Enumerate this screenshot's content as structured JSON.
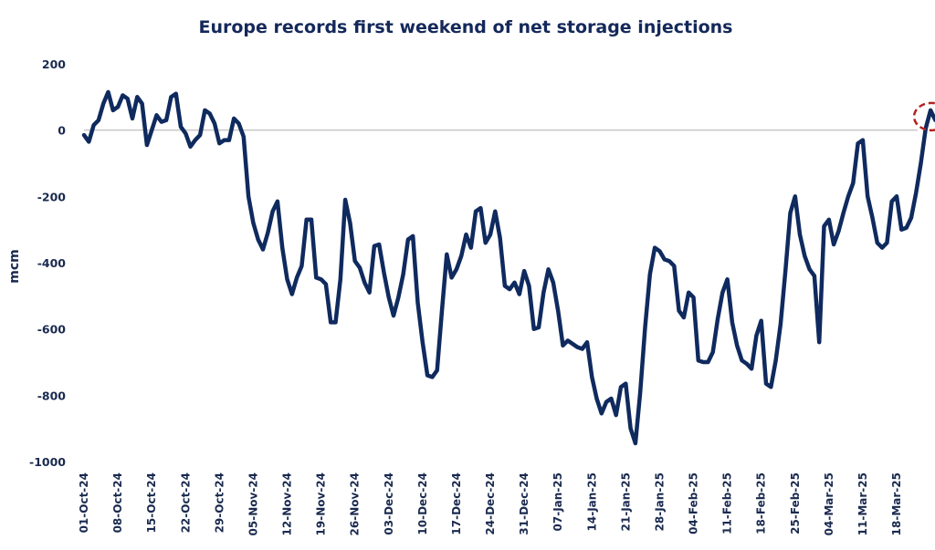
{
  "chart_data": {
    "type": "line",
    "title": "Europe records first weekend of net storage injections",
    "xlabel": "",
    "ylabel": "mcm",
    "ylim": [
      -1000,
      200
    ],
    "yticks": [
      200,
      0,
      -200,
      -400,
      -600,
      -800,
      -1000
    ],
    "ytick_labels": [
      "200",
      "0",
      "-200",
      "-400",
      "-600",
      "-800",
      "-1000"
    ],
    "xtick_labels": [
      "01-Oct-24",
      "08-Oct-24",
      "15-Oct-24",
      "22-Oct-24",
      "29-Oct-24",
      "05-Nov-24",
      "12-Nov-24",
      "19-Nov-24",
      "26-Nov-24",
      "03-Dec-24",
      "10-Dec-24",
      "17-Dec-24",
      "24-Dec-24",
      "31-Dec-24",
      "07-Jan-25",
      "14-Jan-25",
      "21-Jan-25",
      "28-Jan-25",
      "04-Feb-25",
      "11-Feb-25",
      "18-Feb-25",
      "25-Feb-25",
      "04-Mar-25",
      "11-Mar-25",
      "18-Mar-25"
    ],
    "x_start_date": "01-Oct-24",
    "x_step": "1 day",
    "grid": false,
    "zero_line": true,
    "series": [
      {
        "name": "Net storage injections",
        "color": "#0f2a5e",
        "values": [
          -15,
          -35,
          15,
          30,
          80,
          115,
          60,
          70,
          105,
          95,
          35,
          100,
          80,
          -45,
          0,
          45,
          25,
          30,
          100,
          110,
          10,
          -10,
          -50,
          -30,
          -15,
          60,
          50,
          20,
          -40,
          -30,
          -30,
          35,
          20,
          -20,
          -200,
          -280,
          -330,
          -360,
          -310,
          -245,
          -215,
          -355,
          -450,
          -495,
          -445,
          -410,
          -270,
          -270,
          -445,
          -450,
          -465,
          -580,
          -580,
          -450,
          -210,
          -280,
          -395,
          -415,
          -460,
          -490,
          -350,
          -345,
          -430,
          -505,
          -560,
          -505,
          -435,
          -330,
          -320,
          -520,
          -640,
          -740,
          -745,
          -725,
          -545,
          -375,
          -445,
          -420,
          -380,
          -315,
          -355,
          -245,
          -235,
          -340,
          -315,
          -245,
          -325,
          -470,
          -480,
          -460,
          -495,
          -425,
          -470,
          -600,
          -595,
          -490,
          -420,
          -460,
          -545,
          -650,
          -635,
          -645,
          -655,
          -660,
          -640,
          -745,
          -810,
          -855,
          -820,
          -810,
          -860,
          -775,
          -765,
          -900,
          -945,
          -790,
          -595,
          -435,
          -355,
          -365,
          -390,
          -395,
          -410,
          -545,
          -565,
          -490,
          -505,
          -695,
          -700,
          -700,
          -670,
          -570,
          -490,
          -450,
          -580,
          -650,
          -695,
          -705,
          -720,
          -620,
          -575,
          -765,
          -775,
          -695,
          -585,
          -425,
          -250,
          -200,
          -315,
          -380,
          -420,
          -440,
          -640,
          -290,
          -270,
          -345,
          -305,
          -250,
          -200,
          -160,
          -40,
          -30,
          -200,
          -265,
          -340,
          -355,
          -340,
          -215,
          -200,
          -300,
          -295,
          -265,
          -190,
          -100,
          5,
          60,
          30
        ]
      }
    ],
    "annotations": [
      {
        "type": "dashed-ellipse",
        "target": "last data points",
        "color": "#b22222",
        "meaning": "first net injection"
      }
    ]
  }
}
